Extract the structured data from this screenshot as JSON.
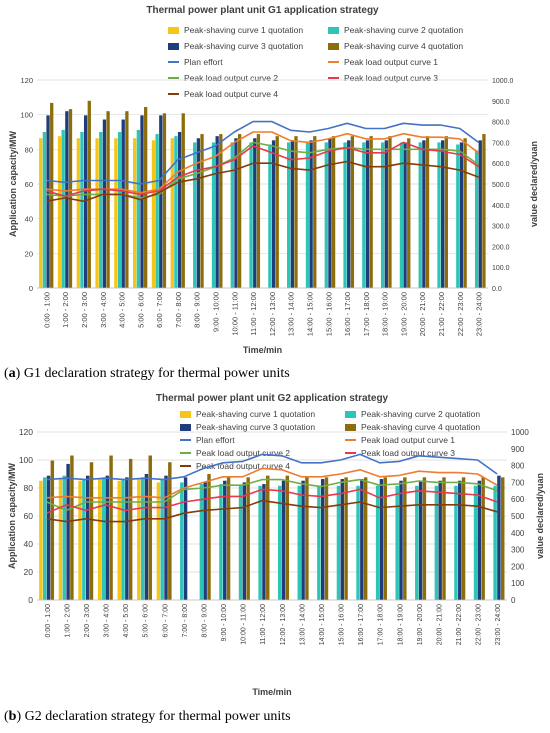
{
  "captions": [
    {
      "label": "a",
      "text": "G1 declaration strategy for thermal power units"
    },
    {
      "label": "b",
      "text": "G2 declaration strategy for thermal power units"
    }
  ],
  "legend": {
    "bar_series": [
      "Peak-shaving curve 1 quotation",
      "Peak-shaving curve 2 quotation",
      "Peak-shaving curve 3 quotation",
      "Peak-shaving curve 4 quotation"
    ],
    "line_series": [
      "Plan effort",
      "Peak load output curve 1",
      "Peak load output curve 2",
      "Peak load output curve 3",
      "Peak load output curve 4"
    ]
  },
  "colors": {
    "curve1_quote": "#f5c518",
    "curve2_quote": "#2ec4b6",
    "curve3_quote": "#1f3d7a",
    "curve4_quote": "#8c6d0c",
    "plan": "#4472c4",
    "out1": "#ed7d31",
    "out2": "#70ad47",
    "out3": "#e8384f",
    "out4": "#843c0c"
  },
  "chart_data": [
    {
      "type": "bar",
      "title": "Thermal power plant unit G1 application strategy",
      "xlabel": "Time/min",
      "ylabel": "Application capacity/MW",
      "y2label": "value declared/yuan",
      "ylim": [
        0,
        120
      ],
      "y2lim": [
        0,
        1000
      ],
      "yticks": [
        "0",
        "20",
        "40",
        "60",
        "80",
        "100",
        "120"
      ],
      "y2ticks": [
        "0.0",
        "100.0",
        "200.0",
        "300.0",
        "400.0",
        "500.0",
        "600.0",
        "700.0",
        "800.0",
        "900.0",
        "1000.0"
      ],
      "categories": [
        "0:00 - 1:00",
        "1:00 - 2:00",
        "2:00 - 3:00",
        "3:00 - 4:00",
        "4:00 - 5:00",
        "5:00 - 6:00",
        "6:00 - 7:00",
        "7:00 - 8:00",
        "8:00 - 9:00",
        "9:00 - 10:00",
        "10:00 - 11:00",
        "11:00 - 12:00",
        "12:00 - 13:00",
        "13:00 - 14:00",
        "14:00 - 15:00",
        "15:00 - 16:00",
        "16:00 - 17:00",
        "17:00 - 18:00",
        "18:00 - 19:00",
        "19:00 - 20:00",
        "20:00 - 21:00",
        "21:00 - 22:00",
        "22:00 - 23:00",
        "23:00 - 24:00"
      ],
      "bar_series": [
        {
          "name": "Peak-shaving curve 1 quotation",
          "axis": "y2",
          "values": [
            720,
            730,
            720,
            720,
            720,
            720,
            710,
            720,
            0,
            0,
            0,
            0,
            0,
            0,
            0,
            0,
            0,
            0,
            0,
            0,
            0,
            0,
            0,
            0
          ]
        },
        {
          "name": "Peak-shaving curve 2 quotation",
          "axis": "y2",
          "values": [
            750,
            760,
            750,
            750,
            750,
            760,
            740,
            730,
            700,
            700,
            700,
            700,
            690,
            700,
            700,
            700,
            700,
            700,
            700,
            700,
            700,
            700,
            690,
            660
          ]
        },
        {
          "name": "Peak-shaving curve 3 quotation",
          "axis": "y2",
          "values": [
            830,
            850,
            830,
            810,
            810,
            830,
            830,
            750,
            720,
            730,
            720,
            720,
            710,
            710,
            710,
            720,
            710,
            710,
            710,
            700,
            710,
            710,
            700,
            710
          ]
        },
        {
          "name": "Peak-shaving curve 4 quotation",
          "axis": "y2",
          "values": [
            890,
            860,
            900,
            850,
            850,
            870,
            840,
            840,
            740,
            740,
            740,
            740,
            730,
            730,
            730,
            730,
            730,
            730,
            730,
            720,
            730,
            730,
            720,
            740
          ]
        }
      ],
      "line_series": [
        {
          "name": "Plan effort",
          "axis": "y",
          "values": [
            62,
            61,
            62,
            62,
            62,
            60,
            62,
            74,
            78,
            82,
            90,
            96,
            96,
            91,
            90,
            92,
            95,
            92,
            92,
            95,
            94,
            94,
            92,
            84
          ]
        },
        {
          "name": "Peak load output curve 1",
          "axis": "y",
          "values": [
            57,
            56,
            57,
            57,
            57,
            55,
            57,
            67,
            72,
            76,
            84,
            90,
            90,
            85,
            84,
            86,
            89,
            86,
            86,
            89,
            87,
            87,
            86,
            78
          ]
        },
        {
          "name": "Peak load output curve 2",
          "axis": "y",
          "values": [
            54,
            53,
            54,
            54,
            54,
            52,
            54,
            63,
            66,
            70,
            75,
            84,
            82,
            79,
            78,
            80,
            81,
            80,
            80,
            80,
            80,
            80,
            79,
            71
          ]
        },
        {
          "name": "Peak load output curve 3",
          "axis": "y",
          "values": [
            56,
            53,
            56,
            57,
            56,
            54,
            56,
            64,
            68,
            70,
            74,
            82,
            78,
            74,
            75,
            79,
            81,
            78,
            78,
            84,
            80,
            79,
            77,
            70
          ]
        },
        {
          "name": "Peak load output curve 4",
          "axis": "y",
          "values": [
            50,
            52,
            50,
            54,
            54,
            51,
            55,
            61,
            63,
            66,
            68,
            72,
            72,
            69,
            68,
            71,
            73,
            70,
            70,
            72,
            71,
            70,
            68,
            64
          ]
        }
      ]
    },
    {
      "type": "bar",
      "title": "Thermal power plant unit G2 application strategy",
      "xlabel": "Time/min",
      "ylabel": "Application capacity/MW",
      "y2label": "value declared/yuan",
      "ylim": [
        0,
        120
      ],
      "y2lim": [
        0,
        1000
      ],
      "yticks": [
        "0",
        "20",
        "40",
        "60",
        "80",
        "100",
        "120"
      ],
      "y2ticks": [
        "0",
        "100",
        "200",
        "300",
        "400",
        "500",
        "600",
        "700",
        "800",
        "900",
        "1000"
      ],
      "categories": [
        "0:00 - 1:00",
        "1:00 - 2:00",
        "2:00 - 3:00",
        "3:00 - 4:00",
        "4:00 - 5:00",
        "5:00 - 6:00",
        "6:00 - 7:00",
        "7:00 - 8:00",
        "8:00 - 9:00",
        "9:00 - 10:00",
        "10:00 - 11:00",
        "11:00 - 12:00",
        "12:00 - 13:00",
        "13:00 - 14:00",
        "14:00 - 15:00",
        "15:00 - 16:00",
        "16:00 - 17:00",
        "17:00 - 18:00",
        "18:00 - 19:00",
        "19:00 - 20:00",
        "20:00 - 21:00",
        "21:00 - 22:00",
        "22:00 - 23:00",
        "23:00 - 24:00"
      ],
      "bar_series": [
        {
          "name": "Peak-shaving curve 1 quotation",
          "axis": "y2",
          "values": [
            710,
            720,
            710,
            720,
            710,
            720,
            700,
            0,
            0,
            0,
            0,
            0,
            0,
            0,
            0,
            0,
            0,
            0,
            0,
            0,
            0,
            0,
            0,
            0
          ]
        },
        {
          "name": "Peak-shaving curve 2 quotation",
          "axis": "y2",
          "values": [
            730,
            740,
            720,
            730,
            720,
            730,
            720,
            700,
            690,
            690,
            680,
            680,
            680,
            680,
            680,
            680,
            680,
            680,
            680,
            680,
            680,
            680,
            680,
            680
          ]
        },
        {
          "name": "Peak-shaving curve 3 quotation",
          "axis": "y2",
          "values": [
            740,
            810,
            740,
            740,
            730,
            750,
            740,
            730,
            700,
            710,
            700,
            690,
            710,
            710,
            720,
            720,
            720,
            720,
            710,
            710,
            710,
            710,
            710,
            740
          ]
        },
        {
          "name": "Peak-shaving curve 4 quotation",
          "axis": "y2",
          "values": [
            830,
            860,
            820,
            860,
            840,
            860,
            820,
            0,
            750,
            730,
            730,
            740,
            740,
            730,
            730,
            730,
            730,
            730,
            730,
            730,
            730,
            730,
            730,
            730
          ]
        }
      ],
      "line_series": [
        {
          "name": "Plan effort",
          "axis": "y",
          "values": [
            86,
            87,
            86,
            87,
            86,
            87,
            86,
            88,
            94,
            98,
            99,
            104,
            103,
            98,
            98,
            100,
            104,
            98,
            99,
            103,
            102,
            101,
            100,
            90
          ]
        },
        {
          "name": "Peak load output curve 1",
          "axis": "y",
          "values": [
            73,
            74,
            73,
            73,
            73,
            74,
            73,
            80,
            84,
            88,
            88,
            94,
            93,
            88,
            88,
            90,
            93,
            88,
            89,
            92,
            91,
            91,
            90,
            82
          ]
        },
        {
          "name": "Peak load output curve 2",
          "axis": "y",
          "values": [
            70,
            64,
            70,
            70,
            70,
            70,
            70,
            79,
            80,
            82,
            82,
            86,
            86,
            83,
            81,
            84,
            86,
            82,
            83,
            85,
            84,
            84,
            83,
            78
          ]
        },
        {
          "name": "Peak load output curve 3",
          "axis": "y",
          "values": [
            62,
            68,
            64,
            68,
            64,
            66,
            66,
            70,
            72,
            74,
            74,
            79,
            78,
            75,
            74,
            76,
            79,
            73,
            76,
            78,
            77,
            76,
            75,
            70
          ]
        },
        {
          "name": "Peak load output curve 4",
          "axis": "y",
          "values": [
            58,
            56,
            58,
            56,
            56,
            58,
            58,
            62,
            64,
            65,
            66,
            71,
            69,
            67,
            66,
            68,
            70,
            66,
            67,
            68,
            68,
            68,
            67,
            63
          ]
        }
      ]
    }
  ]
}
